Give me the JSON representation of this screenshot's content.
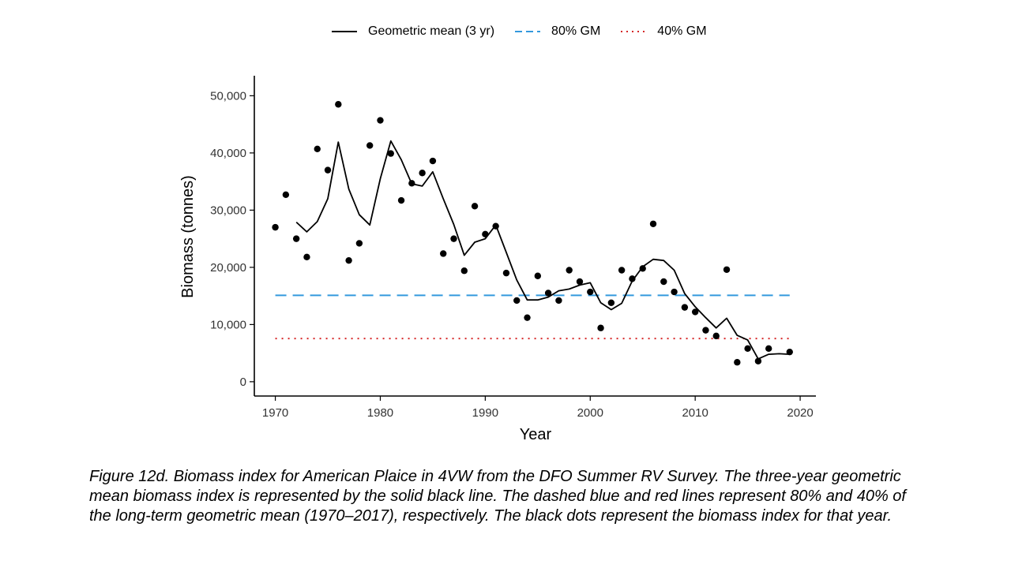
{
  "legend": {
    "gm_label": "Geometric mean (3 yr)",
    "p80_label": "80% GM",
    "p40_label": "40% GM"
  },
  "caption": "Figure 12d. Biomass index for American Plaice in 4VW from the DFO Summer RV Survey. The three-year geometric mean biomass index is represented by the solid black line. The dashed blue and red lines represent 80% and 40% of the long-term geometric mean (1970–2017), respectively.  The black dots represent the biomass index for that year.",
  "chart_data": {
    "type": "scatter",
    "xlabel": "Year",
    "ylabel": "Biomass (tonnes)",
    "xlim": [
      1968,
      2021.5
    ],
    "ylim": [
      -2500,
      53500
    ],
    "xticks": [
      1970,
      1980,
      1990,
      2000,
      2010,
      2020
    ],
    "xtick_labels": [
      "1970",
      "1980",
      "1990",
      "2000",
      "2010",
      "2020"
    ],
    "yticks": [
      0,
      10000,
      20000,
      30000,
      40000,
      50000
    ],
    "ytick_labels": [
      "0",
      "10,000",
      "20,000",
      "30,000",
      "40,000",
      "50,000"
    ],
    "grid": false,
    "legend_position": "top",
    "colors": {
      "gm": "#000000",
      "p80": "#3399dd",
      "p40": "#d62728",
      "points": "#000000"
    },
    "points": {
      "name": "Biomass index",
      "x": [
        1970,
        1971,
        1972,
        1973,
        1974,
        1975,
        1976,
        1977,
        1978,
        1979,
        1980,
        1981,
        1982,
        1983,
        1984,
        1985,
        1986,
        1987,
        1988,
        1989,
        1990,
        1991,
        1992,
        1993,
        1994,
        1995,
        1996,
        1997,
        1998,
        1999,
        2000,
        2001,
        2002,
        2003,
        2004,
        2005,
        2006,
        2007,
        2008,
        2009,
        2010,
        2011,
        2012,
        2013,
        2014,
        2015,
        2016,
        2017,
        2019
      ],
      "y": [
        27000,
        32700,
        25000,
        21800,
        40700,
        37000,
        48500,
        21200,
        24200,
        41300,
        45700,
        39900,
        31700,
        34700,
        36500,
        38600,
        22400,
        25000,
        19400,
        30700,
        25800,
        27200,
        19000,
        14200,
        11200,
        18500,
        15500,
        14200,
        19500,
        17500,
        15700,
        9400,
        13800,
        19500,
        18000,
        19800,
        27600,
        17500,
        15700,
        13000,
        12200,
        9000,
        8000,
        19600,
        3400,
        5800,
        3600,
        5800,
        5200
      ]
    },
    "series": [
      {
        "name": "Geometric mean (3 yr)",
        "x": [
          1972,
          1973,
          1974,
          1975,
          1976,
          1977,
          1978,
          1979,
          1980,
          1981,
          1982,
          1983,
          1984,
          1985,
          1986,
          1987,
          1988,
          1989,
          1990,
          1991,
          1992,
          1993,
          1994,
          1995,
          1996,
          1997,
          1998,
          1999,
          2000,
          2001,
          2002,
          2003,
          2004,
          2005,
          2006,
          2007,
          2008,
          2009,
          2010,
          2011,
          2012,
          2013,
          2014,
          2015,
          2016,
          2017,
          2018,
          2019
        ],
        "y": [
          27900,
          26200,
          28000,
          32000,
          41900,
          33700,
          29200,
          27400,
          35500,
          42100,
          38800,
          34600,
          34200,
          36700,
          32000,
          27500,
          22100,
          24400,
          25000,
          27400,
          22600,
          17800,
          14300,
          14300,
          14800,
          15900,
          16200,
          16900,
          17300,
          13800,
          12600,
          13700,
          17600,
          20100,
          21400,
          21200,
          19500,
          15400,
          13100,
          11200,
          9400,
          11100,
          8100,
          7300,
          4000,
          4800,
          4900,
          4800
        ]
      },
      {
        "name": "80% GM",
        "x": [
          1970,
          2019
        ],
        "y": [
          15100,
          15100
        ]
      },
      {
        "name": "40% GM",
        "x": [
          1970,
          2019
        ],
        "y": [
          7550,
          7550
        ]
      }
    ]
  }
}
